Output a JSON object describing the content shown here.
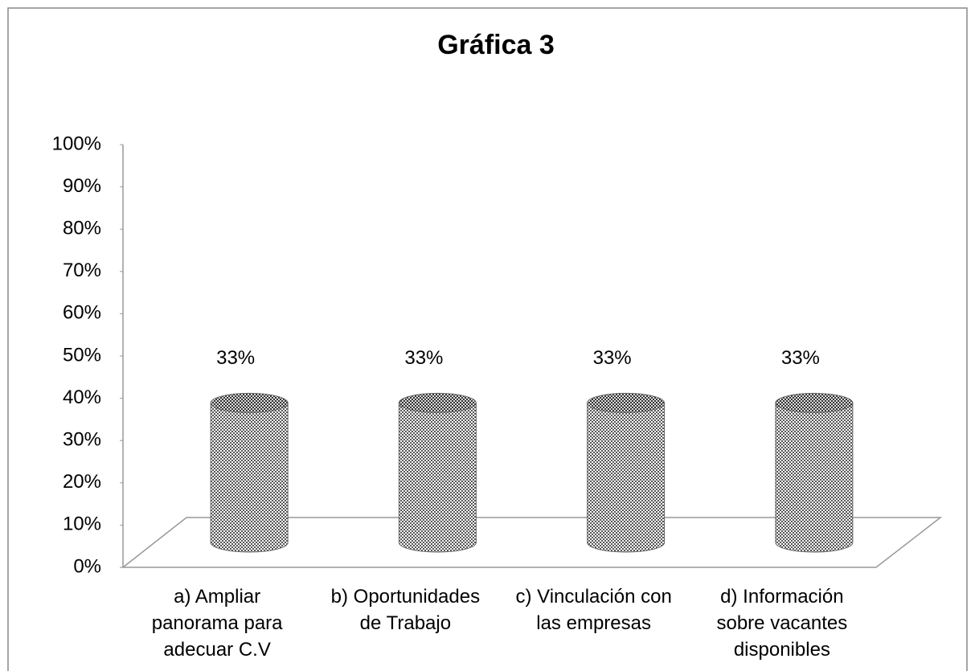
{
  "chart_data": {
    "type": "cylinder",
    "title": "Gráfica 3",
    "categories": [
      "a) Ampliar panorama para adecuar C.V",
      "b) Oportunidades de Trabajo",
      "c) Vinculación con las empresas",
      "d) Información sobre vacantes disponibles"
    ],
    "values": [
      33,
      33,
      33,
      33
    ],
    "value_labels": [
      "33%",
      "33%",
      "33%",
      "33%"
    ],
    "ylim": [
      0,
      100
    ],
    "yticks": [
      {
        "value": 0,
        "label": "0%"
      },
      {
        "value": 10,
        "label": "10%"
      },
      {
        "value": 20,
        "label": "20%"
      },
      {
        "value": 30,
        "label": "30%"
      },
      {
        "value": 40,
        "label": "40%"
      },
      {
        "value": 50,
        "label": "50%"
      },
      {
        "value": 60,
        "label": "60%"
      },
      {
        "value": 70,
        "label": "70%"
      },
      {
        "value": 80,
        "label": "80%"
      },
      {
        "value": 90,
        "label": "90%"
      },
      {
        "value": 100,
        "label": "100%"
      }
    ],
    "grid": false
  }
}
